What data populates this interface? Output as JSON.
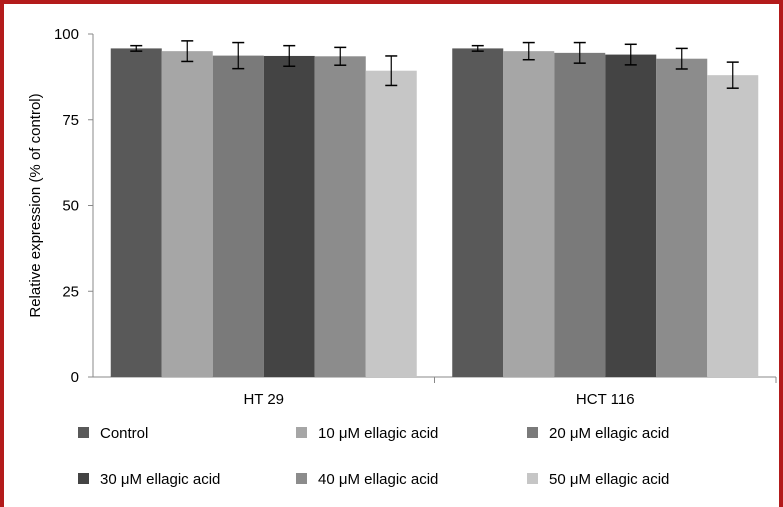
{
  "chart_data": {
    "type": "bar",
    "ylabel": "Relative expression (% of control)",
    "xlabel": "",
    "ylim": [
      0,
      100
    ],
    "yticks": [
      0,
      25,
      50,
      75,
      100
    ],
    "categories": [
      "HT 29",
      "HCT 116"
    ],
    "series": [
      {
        "name": "Control",
        "values": [
          95.8,
          95.8
        ],
        "errors": [
          0.8,
          0.8
        ],
        "color": "#595959"
      },
      {
        "name": "10 μM ellagic acid",
        "values": [
          95.0,
          95.0
        ],
        "errors": [
          3.0,
          2.5
        ],
        "color": "#a6a6a6"
      },
      {
        "name": "20 μM ellagic acid",
        "values": [
          93.7,
          94.5
        ],
        "errors": [
          3.8,
          3.0
        ],
        "color": "#7a7a7a"
      },
      {
        "name": "30 μM ellagic acid",
        "values": [
          93.6,
          94.0
        ],
        "errors": [
          3.0,
          3.0
        ],
        "color": "#444444"
      },
      {
        "name": "40 μM ellagic acid",
        "values": [
          93.5,
          92.8
        ],
        "errors": [
          2.6,
          3.0
        ],
        "color": "#8c8c8c"
      },
      {
        "name": "50 μM ellagic acid",
        "values": [
          89.3,
          88.0
        ],
        "errors": [
          4.3,
          3.8
        ],
        "color": "#c6c6c6"
      }
    ],
    "legend_position": "bottom",
    "grid": false
  }
}
